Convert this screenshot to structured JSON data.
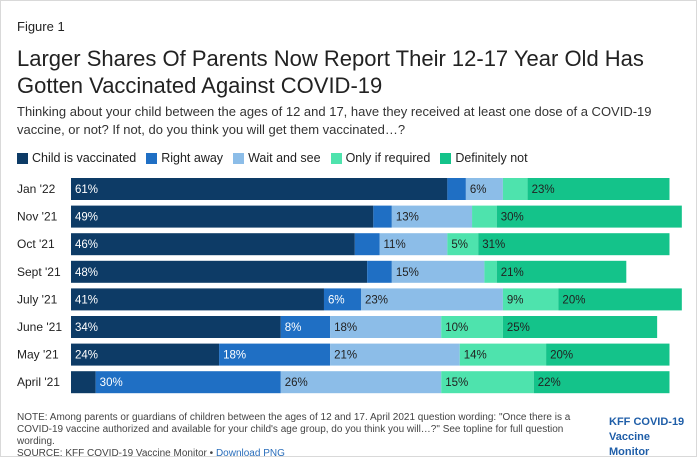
{
  "figure_label": "Figure 1",
  "title": "Larger Shares Of Parents Now Report Their 12-17 Year Old Has Gotten Vaccinated Against COVID-19",
  "subtitle": "Thinking about your child between the ages of 12 and 17, have they received at least one dose of a COVID-19 vaccine, or not? If not, do you think you will get them vaccinated…?",
  "note": "NOTE: Among parents or guardians of children between the ages of 12 and 17. April 2021 question wording: \"Once there is a COVID-19 vaccine authorized and available for your child's age group, do you think you will…?\" See topline for full question wording.",
  "source": "SOURCE: KFF COVID-19 Vaccine Monitor •",
  "download_link": "Download PNG",
  "logo": {
    "line1": "KFF COVID-19",
    "line2": "Vaccine Monitor"
  },
  "colors": {
    "child_vaccinated": "#0d3b66",
    "right_away": "#1f6fc4",
    "wait_and_see": "#8cbde8",
    "only_if_required": "#4ee3ad",
    "definitely_not": "#14c38a",
    "label_light": "#ffffff",
    "label_dark": "#222222"
  },
  "chart_data": {
    "type": "bar",
    "orientation": "horizontal",
    "stacked": true,
    "categories": [
      "Jan '22",
      "Nov '21",
      "Oct '21",
      "Sept '21",
      "July '21",
      "June '21",
      "May '21",
      "April '21"
    ],
    "series": [
      {
        "name": "Child is vaccinated",
        "values": [
          61,
          49,
          46,
          48,
          41,
          34,
          24,
          4
        ],
        "labels": [
          "61%",
          "49%",
          "46%",
          "48%",
          "41%",
          "34%",
          "24%",
          ""
        ]
      },
      {
        "name": "Right away",
        "values": [
          3,
          3,
          4,
          4,
          6,
          8,
          18,
          30
        ],
        "labels": [
          "",
          "",
          "",
          "",
          "6%",
          "8%",
          "18%",
          "30%"
        ]
      },
      {
        "name": "Wait and see",
        "values": [
          6,
          13,
          11,
          15,
          23,
          18,
          21,
          26
        ],
        "labels": [
          "6%",
          "13%",
          "11%",
          "15%",
          "23%",
          "18%",
          "21%",
          "26%"
        ]
      },
      {
        "name": "Only if required",
        "values": [
          4,
          4,
          5,
          2,
          9,
          10,
          14,
          15
        ],
        "labels": [
          "",
          "",
          "5%",
          "",
          "9%",
          "10%",
          "14%",
          "15%"
        ]
      },
      {
        "name": "Definitely not",
        "values": [
          23,
          30,
          31,
          21,
          20,
          25,
          20,
          22
        ],
        "labels": [
          "23%",
          "30%",
          "31%",
          "21%",
          "20%",
          "25%",
          "20%",
          "22%"
        ]
      }
    ],
    "xlim": [
      0,
      100
    ],
    "legend_position": "top",
    "grid": false
  }
}
